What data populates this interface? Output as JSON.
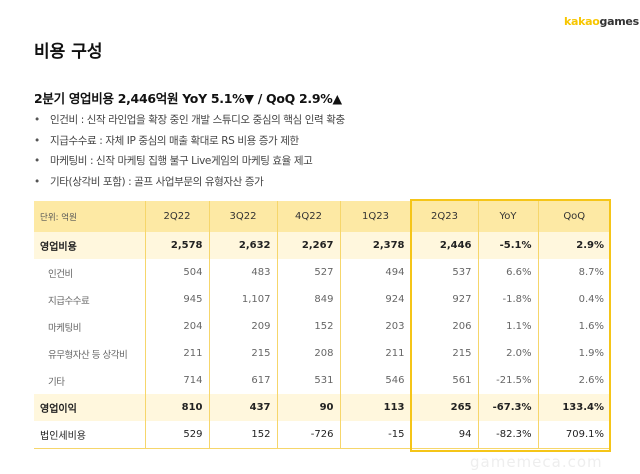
{
  "logo": {
    "part1": "kakao",
    "part2": "games"
  },
  "title": "비용 구성",
  "summary": "2분기 영업비용 2,446억원 YoY 5.1%▼ / QoQ 2.9%▲",
  "bullets": [
    "인건비 : 신작 라인업을 확장 중인 개발 스튜디오 중심의 핵심 인력 확충",
    "지급수수료 : 자체 IP 중심의 매출 확대로 RS 비용 증가 제한",
    "마케팅비 : 신작 마케팅 집행 불구 Live게임의 마케팅 효율 제고",
    "기타(상각비 포함) : 골프 사업부문의 유형자산 증가"
  ],
  "table": {
    "headers": [
      "단위: 억원",
      "2Q22",
      "3Q22",
      "4Q22",
      "1Q23",
      "2Q23",
      "YoY",
      "QoQ"
    ],
    "rows": [
      {
        "type": "total",
        "cells": [
          "영업비용",
          "2,578",
          "2,632",
          "2,267",
          "2,378",
          "2,446",
          "-5.1%",
          "2.9%"
        ]
      },
      {
        "type": "sub",
        "cells": [
          "인건비",
          "504",
          "483",
          "527",
          "494",
          "537",
          "6.6%",
          "8.7%"
        ]
      },
      {
        "type": "sub",
        "cells": [
          "지급수수료",
          "945",
          "1,107",
          "849",
          "924",
          "927",
          "-1.8%",
          "0.4%"
        ]
      },
      {
        "type": "sub",
        "cells": [
          "마케팅비",
          "204",
          "209",
          "152",
          "203",
          "206",
          "1.1%",
          "1.6%"
        ]
      },
      {
        "type": "sub",
        "cells": [
          "유무형자산 등 상각비",
          "211",
          "215",
          "208",
          "211",
          "215",
          "2.0%",
          "1.9%"
        ]
      },
      {
        "type": "sub",
        "cells": [
          "기타",
          "714",
          "617",
          "531",
          "546",
          "561",
          "-21.5%",
          "2.6%"
        ]
      },
      {
        "type": "total",
        "cells": [
          "영업이익",
          "810",
          "437",
          "90",
          "113",
          "265",
          "-67.3%",
          "133.4%"
        ]
      },
      {
        "type": "plain",
        "cells": [
          "법인세비용",
          "529",
          "152",
          "-726",
          "-15",
          "94",
          "-82.3%",
          "709.1%"
        ]
      }
    ]
  },
  "watermark": "gamemeca.com",
  "colors": {
    "accent": "#f5c518",
    "header_bg": "#fde9a4",
    "highlight_row": "#fff7dd"
  }
}
